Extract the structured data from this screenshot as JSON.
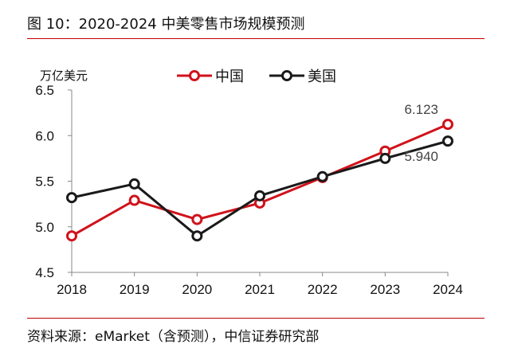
{
  "header": {
    "title": "图 10：2020-2024 中美零售市场规模预测"
  },
  "footer": {
    "source": "资料来源：eMarket（含预测），中信证券研究部"
  },
  "colors": {
    "china": "#d0121b",
    "usa": "#1a1a1a",
    "rule": "#c00000"
  },
  "chart_data": {
    "type": "line",
    "unit_label": "万亿美元",
    "ylabel": "万亿美元",
    "xlabel": "",
    "x": [
      "2018",
      "2019",
      "2020",
      "2021",
      "2022",
      "2023",
      "2024"
    ],
    "ylim": [
      4.5,
      6.5
    ],
    "yticks": [
      "4.5",
      "5.0",
      "5.5",
      "6.0",
      "6.5"
    ],
    "grid": false,
    "legend_position": "top-center",
    "series": [
      {
        "name": "中国",
        "color": "#d0121b",
        "values": [
          4.9,
          5.29,
          5.08,
          5.26,
          5.54,
          5.83,
          6.123
        ],
        "end_label": "6.123"
      },
      {
        "name": "美国",
        "color": "#1a1a1a",
        "values": [
          5.32,
          5.47,
          4.9,
          5.34,
          5.55,
          5.75,
          5.94
        ],
        "end_label": "5.940"
      }
    ]
  }
}
